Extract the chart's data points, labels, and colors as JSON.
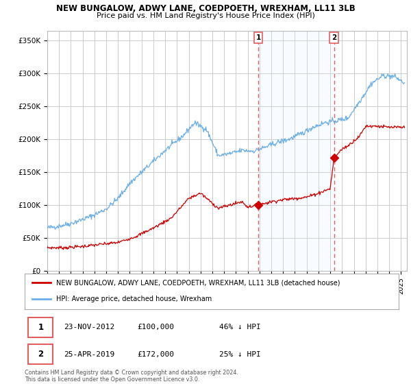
{
  "title": "NEW BUNGALOW, ADWY LANE, COEDPOETH, WREXHAM, LL11 3LB",
  "subtitle": "Price paid vs. HM Land Registry's House Price Index (HPI)",
  "ylabel_ticks": [
    "£0",
    "£50K",
    "£100K",
    "£150K",
    "£200K",
    "£250K",
    "£300K",
    "£350K"
  ],
  "ytick_values": [
    0,
    50000,
    100000,
    150000,
    200000,
    250000,
    300000,
    350000
  ],
  "ylim": [
    0,
    365000
  ],
  "xlim_start": 1995.0,
  "xlim_end": 2025.5,
  "sale1_date": 2012.9,
  "sale1_price": 100000,
  "sale1_label": "1",
  "sale2_date": 2019.32,
  "sale2_price": 172000,
  "sale2_label": "2",
  "hpi_color": "#6aaee8",
  "price_color": "#cc0000",
  "vline_color": "#e06060",
  "span_color": "#ddeeff",
  "legend_property_label": "NEW BUNGALOW, ADWY LANE, COEDPOETH, WREXHAM, LL11 3LB (detached house)",
  "legend_hpi_label": "HPI: Average price, detached house, Wrexham",
  "table_row1": [
    "1",
    "23-NOV-2012",
    "£100,000",
    "46% ↓ HPI"
  ],
  "table_row2": [
    "2",
    "25-APR-2019",
    "£172,000",
    "25% ↓ HPI"
  ],
  "footer": "Contains HM Land Registry data © Crown copyright and database right 2024.\nThis data is licensed under the Open Government Licence v3.0.",
  "bg_color": "#ffffff",
  "plot_bg": "#ffffff",
  "grid_color": "#cccccc",
  "hpi_keypoints_x": [
    1995.0,
    1996.0,
    1997.0,
    1998.0,
    1999.0,
    2000.0,
    2001.0,
    2002.0,
    2003.5,
    2005.0,
    2006.5,
    2007.5,
    2008.5,
    2009.5,
    2010.5,
    2011.5,
    2012.5,
    2013.5,
    2014.5,
    2015.5,
    2016.5,
    2017.5,
    2018.5,
    2019.5,
    2020.5,
    2021.5,
    2022.5,
    2023.5,
    2024.5,
    2025.3
  ],
  "hpi_keypoints_y": [
    65000,
    68000,
    72000,
    78000,
    85000,
    94000,
    110000,
    133000,
    158000,
    183000,
    205000,
    225000,
    215000,
    175000,
    178000,
    183000,
    182000,
    188000,
    195000,
    200000,
    208000,
    218000,
    225000,
    228000,
    232000,
    258000,
    285000,
    297000,
    295000,
    285000
  ],
  "prop_keypoints_x": [
    1995.0,
    1996.5,
    1998.0,
    1999.5,
    2001.0,
    2002.5,
    2004.0,
    2005.5,
    2007.0,
    2008.0,
    2009.5,
    2010.5,
    2011.5,
    2012.0,
    2012.9,
    2014.0,
    2015.0,
    2016.0,
    2017.0,
    2018.0,
    2019.0,
    2019.32,
    2020.0,
    2020.5,
    2021.5,
    2022.0,
    2023.0,
    2024.0,
    2025.3
  ],
  "prop_keypoints_y": [
    35000,
    35000,
    37000,
    40000,
    43000,
    52000,
    65000,
    80000,
    110000,
    118000,
    95000,
    100000,
    105000,
    97000,
    100000,
    105000,
    108000,
    110000,
    112000,
    118000,
    125000,
    172000,
    185000,
    190000,
    205000,
    220000,
    220000,
    218000,
    218000
  ]
}
